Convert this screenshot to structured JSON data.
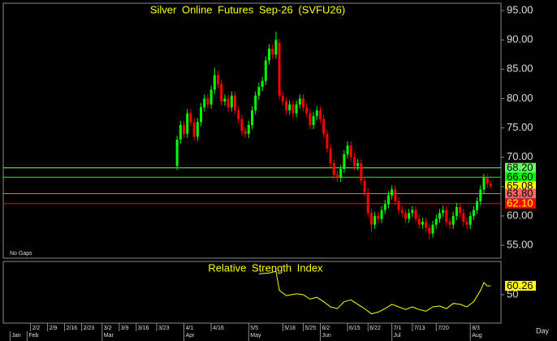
{
  "chart_data": {
    "type": "candlestick",
    "title": "Silver Online Futures Sep-26 (SVFU26)",
    "note": "No Gaps",
    "x_unit": "Day",
    "xlim": [
      0,
      146
    ],
    "ylim": [
      52.8,
      96.25
    ],
    "yticks": [
      {
        "value": 55,
        "label": "55.00"
      },
      {
        "value": 60,
        "label": "60.00"
      },
      {
        "value": 65,
        "label": "65.00"
      },
      {
        "value": 70,
        "label": "70.00"
      },
      {
        "value": 75,
        "label": "75.00"
      },
      {
        "value": 80,
        "label": "80.00"
      },
      {
        "value": 85,
        "label": "85.00"
      },
      {
        "value": 90,
        "label": "90.00"
      },
      {
        "value": 95,
        "label": "95.00"
      }
    ],
    "xticks": [
      {
        "value": 8,
        "label": "2/2"
      },
      {
        "value": 13,
        "label": "2/9"
      },
      {
        "value": 18,
        "label": "2/16"
      },
      {
        "value": 23,
        "label": "2/23"
      },
      {
        "value": 29,
        "label": "3/2"
      },
      {
        "value": 34,
        "label": "3/9"
      },
      {
        "value": 39,
        "label": "3/16"
      },
      {
        "value": 45,
        "label": "3/23"
      },
      {
        "value": 53,
        "label": "4/1"
      },
      {
        "value": 61,
        "label": "4/16"
      },
      {
        "value": 72,
        "label": "5/5"
      },
      {
        "value": 82,
        "label": "5/18"
      },
      {
        "value": 88,
        "label": "5/25"
      },
      {
        "value": 93,
        "label": "6/2"
      },
      {
        "value": 101,
        "label": "6/15"
      },
      {
        "value": 107,
        "label": "6/22"
      },
      {
        "value": 114,
        "label": "7/1"
      },
      {
        "value": 120,
        "label": "7/13"
      },
      {
        "value": 127,
        "label": "7/20"
      },
      {
        "value": 137,
        "label": "8/3"
      }
    ],
    "months": [
      {
        "value": 2,
        "label": "Jan"
      },
      {
        "value": 7,
        "label": "Feb"
      },
      {
        "value": 29,
        "label": "Mar"
      },
      {
        "value": 53,
        "label": "Apr"
      },
      {
        "value": 72,
        "label": "May"
      },
      {
        "value": 93,
        "label": "Jun"
      },
      {
        "value": 114,
        "label": "Jul"
      },
      {
        "value": 137,
        "label": "Aug"
      }
    ],
    "up_color": "#00ff00",
    "down_color": "#ff0000",
    "candles": {
      "x": [
        51,
        52,
        53,
        54,
        55,
        56,
        57,
        58,
        59,
        60,
        61,
        62,
        63,
        64,
        65,
        66,
        67,
        68,
        69,
        70,
        71,
        72,
        73,
        74,
        75,
        76,
        77,
        78,
        79,
        80,
        81,
        82,
        83,
        84,
        85,
        86,
        87,
        88,
        89,
        90,
        91,
        92,
        93,
        94,
        95,
        96,
        97,
        98,
        99,
        100,
        101,
        102,
        103,
        104,
        105,
        106,
        107,
        108,
        109,
        110,
        111,
        112,
        113,
        114,
        115,
        116,
        117,
        118,
        119,
        120,
        121,
        122,
        123,
        124,
        125,
        126,
        127,
        128,
        129,
        130,
        131,
        132,
        133,
        134,
        135,
        136,
        137,
        138,
        139,
        140,
        141,
        142,
        143
      ],
      "open": [
        68.5,
        73.0,
        75.5,
        74.0,
        77.5,
        76.0,
        73.5,
        76.0,
        78.5,
        80.0,
        79.0,
        81.5,
        84.0,
        82.5,
        79.5,
        80.0,
        78.5,
        80.5,
        78.0,
        76.5,
        74.5,
        74.0,
        75.5,
        78.0,
        80.5,
        82.0,
        83.0,
        86.5,
        88.5,
        87.5,
        89.5,
        80.5,
        79.5,
        78.0,
        79.0,
        77.5,
        79.0,
        80.0,
        78.5,
        77.5,
        75.5,
        77.0,
        78.0,
        76.5,
        74.0,
        71.5,
        69.0,
        67.0,
        66.5,
        68.0,
        70.5,
        72.0,
        70.0,
        68.5,
        69.0,
        66.0,
        64.0,
        60.5,
        58.5,
        60.0,
        59.5,
        61.0,
        62.0,
        63.5,
        64.5,
        62.5,
        61.0,
        60.5,
        59.5,
        60.5,
        61.0,
        59.5,
        58.5,
        59.0,
        58.0,
        57.0,
        58.5,
        59.5,
        60.5,
        61.0,
        59.0,
        58.5,
        60.0,
        61.5,
        60.5,
        59.0,
        58.5,
        60.0,
        61.0,
        62.5,
        64.5,
        66.5,
        65.5
      ],
      "high": [
        73.7,
        76.2,
        76.2,
        78.2,
        78.2,
        76.7,
        76.7,
        79.2,
        80.7,
        80.7,
        82.2,
        85.3,
        84.7,
        83.2,
        80.7,
        80.7,
        81.2,
        81.2,
        78.7,
        77.2,
        75.2,
        76.2,
        78.7,
        81.2,
        82.7,
        83.7,
        87.2,
        89.2,
        89.2,
        91.4,
        90.2,
        81.2,
        80.2,
        79.7,
        79.7,
        79.7,
        80.7,
        80.7,
        79.2,
        78.2,
        77.7,
        78.7,
        78.7,
        77.2,
        74.7,
        72.2,
        69.7,
        67.7,
        68.7,
        71.2,
        72.7,
        72.7,
        70.7,
        69.7,
        69.7,
        66.7,
        64.7,
        61.2,
        60.7,
        60.7,
        61.7,
        62.7,
        64.2,
        65.2,
        65.2,
        63.2,
        61.7,
        61.2,
        61.2,
        61.7,
        61.7,
        60.2,
        59.7,
        59.7,
        58.7,
        59.2,
        60.2,
        61.2,
        61.7,
        61.7,
        59.7,
        60.7,
        62.2,
        62.2,
        61.2,
        59.7,
        60.7,
        61.7,
        63.2,
        65.2,
        67.2,
        67.2,
        65.8
      ],
      "low": [
        67.8,
        72.3,
        73.3,
        73.3,
        75.3,
        72.8,
        72.8,
        75.3,
        77.8,
        78.3,
        78.3,
        80.8,
        81.8,
        78.8,
        78.8,
        77.8,
        77.8,
        77.3,
        75.8,
        73.8,
        73.3,
        73.3,
        74.8,
        77.3,
        79.8,
        81.3,
        82.3,
        85.8,
        86.8,
        86.8,
        79.8,
        78.8,
        77.3,
        77.3,
        76.8,
        76.8,
        78.3,
        77.8,
        76.8,
        74.8,
        74.8,
        76.3,
        75.8,
        73.3,
        70.8,
        68.3,
        66.3,
        65.8,
        65.8,
        67.3,
        69.8,
        69.3,
        67.8,
        67.8,
        65.3,
        63.3,
        59.8,
        57.3,
        57.8,
        58.8,
        58.8,
        60.3,
        61.3,
        62.8,
        61.8,
        60.3,
        59.8,
        58.8,
        58.8,
        59.8,
        58.8,
        57.8,
        57.8,
        57.3,
        56.0,
        56.3,
        57.8,
        58.8,
        59.8,
        58.3,
        57.8,
        57.8,
        59.3,
        59.8,
        58.3,
        57.8,
        57.8,
        59.3,
        60.3,
        61.8,
        63.8,
        64.8,
        64.6
      ],
      "close": [
        73.0,
        75.5,
        74.0,
        77.5,
        76.0,
        73.5,
        76.0,
        78.5,
        80.0,
        79.0,
        81.5,
        84.0,
        82.5,
        79.5,
        80.0,
        78.5,
        80.5,
        78.0,
        76.5,
        74.5,
        74.0,
        75.5,
        78.0,
        80.5,
        82.0,
        83.0,
        86.5,
        88.5,
        87.5,
        90.0,
        80.5,
        79.5,
        78.0,
        79.0,
        77.5,
        79.0,
        80.0,
        78.5,
        77.5,
        75.5,
        77.0,
        78.0,
        76.5,
        74.0,
        71.5,
        69.0,
        67.0,
        66.5,
        68.0,
        70.5,
        72.0,
        70.0,
        68.5,
        69.0,
        66.0,
        64.0,
        60.5,
        58.5,
        60.0,
        59.5,
        61.0,
        62.0,
        63.5,
        64.5,
        62.5,
        61.0,
        60.5,
        59.5,
        60.5,
        61.0,
        59.5,
        58.5,
        59.0,
        58.0,
        57.0,
        58.5,
        59.5,
        60.5,
        61.0,
        59.0,
        58.5,
        60.0,
        61.5,
        60.5,
        59.0,
        58.5,
        60.0,
        61.0,
        62.5,
        64.5,
        66.5,
        65.5,
        65.08
      ]
    },
    "levels": [
      {
        "value": 68.2,
        "label": "68.20",
        "color": "#66ff66",
        "text_color": "#000000",
        "line": true
      },
      {
        "value": 66.6,
        "label": "66.60",
        "color": "#00ff00",
        "text_color": "#000000",
        "line": true
      },
      {
        "value": 65.08,
        "label": "65.08",
        "color": "#ffff00",
        "text_color": "#000000",
        "line": false
      },
      {
        "value": 63.8,
        "label": "63.80",
        "color": "#ff6666",
        "text_color": "#000000",
        "line": true
      },
      {
        "value": 62.1,
        "label": "62.10",
        "color": "#ff0000",
        "text_color": "#ffff00",
        "line": true
      }
    ],
    "rsi": {
      "title": "Relative Strength Index",
      "color": "#ffff00",
      "ylim": [
        17.3,
        88.3
      ],
      "yticks": [
        50
      ],
      "last": {
        "value": 60.26,
        "label": "60.26"
      },
      "x": [
        75,
        78,
        80,
        81,
        83,
        86,
        88,
        90,
        92,
        94,
        96,
        98,
        100,
        102,
        104,
        106,
        108,
        110,
        112,
        114,
        116,
        118,
        120,
        122,
        124,
        126,
        128,
        130,
        132,
        134,
        136,
        138,
        140,
        141,
        142,
        143
      ],
      "values": [
        74,
        75,
        77,
        55,
        49,
        51,
        50,
        45,
        47,
        42,
        36,
        34,
        42,
        44,
        39,
        34,
        28,
        30,
        34,
        39,
        36,
        33,
        36,
        33,
        31,
        36,
        37,
        34,
        40,
        39,
        36,
        42,
        55,
        64,
        60,
        60.26
      ]
    }
  }
}
